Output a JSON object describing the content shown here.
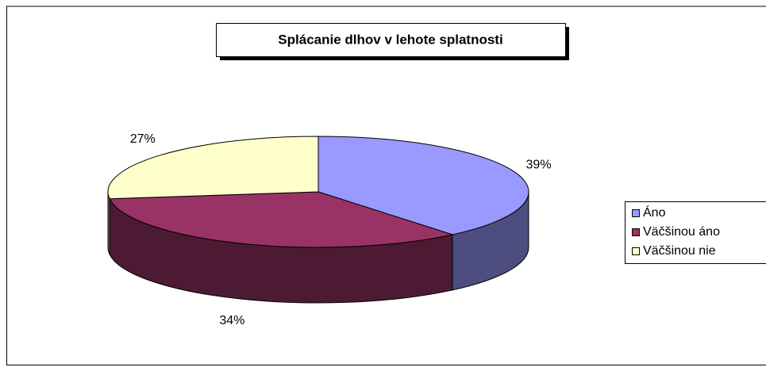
{
  "chart_data": {
    "type": "pie",
    "title": "Splácanie dlhov v lehote splatnosti",
    "categories": [
      "Áno",
      "Väčšinou áno",
      "Väčšinou nie"
    ],
    "values": [
      39,
      34,
      27
    ],
    "value_labels": [
      "39%",
      "34%",
      "27%"
    ],
    "colors": [
      "#9999ff",
      "#993366",
      "#ffffcc"
    ],
    "legend": "right"
  }
}
